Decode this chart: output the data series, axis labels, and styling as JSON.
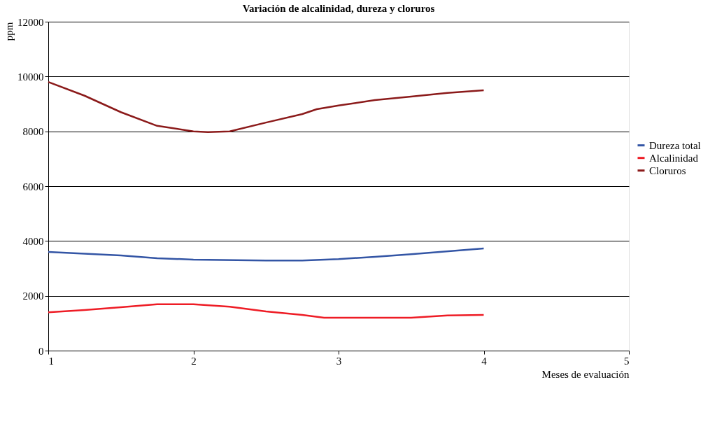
{
  "chart_data": {
    "type": "line",
    "title": "Variación de alcalinidad, dureza y cloruros",
    "xlabel": "Meses de evaluación",
    "ylabel": "ppm",
    "xlim": [
      1,
      5
    ],
    "xticks": [
      1,
      2,
      3,
      4,
      5
    ],
    "ylim": [
      0,
      12000
    ],
    "yticks": [
      0,
      2000,
      4000,
      6000,
      8000,
      10000,
      12000
    ],
    "grid": "y",
    "legend": "right",
    "marker": "none",
    "line_style": "solid",
    "series": [
      {
        "name": "Dureza total",
        "color": "#3355a5",
        "x": [
          1,
          1.5,
          1.75,
          2,
          2.5,
          2.75,
          3,
          3.25,
          3.5,
          4
        ],
        "values": [
          3600,
          3470,
          3370,
          3320,
          3290,
          3290,
          3340,
          3420,
          3520,
          3730
        ]
      },
      {
        "name": "Alcalinidad",
        "color": "#ee1c25",
        "x": [
          1,
          1.25,
          1.5,
          1.75,
          2,
          2.25,
          2.5,
          2.75,
          2.9,
          3,
          3.5,
          3.75,
          4
        ],
        "values": [
          1400,
          1480,
          1580,
          1690,
          1690,
          1600,
          1430,
          1300,
          1200,
          1200,
          1200,
          1280,
          1300
        ]
      },
      {
        "name": "Cloruros",
        "color": "#8b1a1a",
        "x": [
          1,
          1.25,
          1.5,
          1.75,
          2,
          2.1,
          2.25,
          2.5,
          2.75,
          2.85,
          3,
          3.25,
          3.5,
          3.75,
          4
        ],
        "values": [
          9800,
          9300,
          8700,
          8200,
          8000,
          7970,
          8000,
          8320,
          8630,
          8810,
          8940,
          9140,
          9270,
          9400,
          9500
        ]
      }
    ]
  }
}
